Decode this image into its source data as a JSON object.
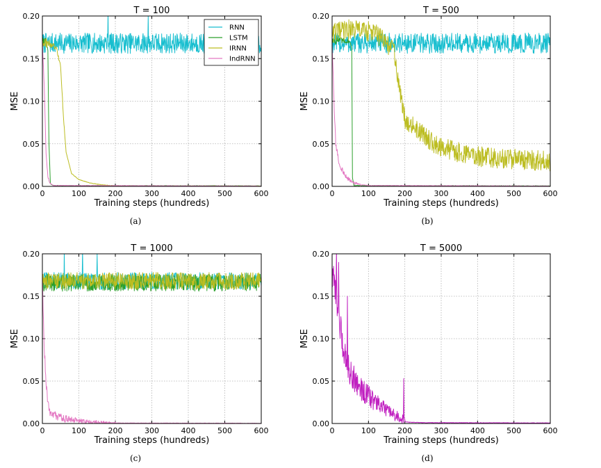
{
  "chart_data": [
    {
      "type": "line",
      "title": "T = 100",
      "caption": "(a)",
      "xlabel": "Training steps (hundreds)",
      "ylabel": "MSE",
      "xlim": [
        0,
        600
      ],
      "ylim": [
        0,
        0.2
      ],
      "xticks": [
        "0",
        "100",
        "200",
        "300",
        "400",
        "500",
        "600"
      ],
      "yticks": [
        "0.00",
        "0.05",
        "0.10",
        "0.15",
        "0.20"
      ],
      "grid": true,
      "legend": {
        "position": "top-right",
        "entries": [
          "RNN",
          "LSTM",
          "IRNN",
          "IndRNN"
        ]
      },
      "series": [
        {
          "name": "RNN",
          "color": "#17becf",
          "x": [
            0,
            600
          ],
          "level": [
            0.168,
            0.168
          ],
          "noise": 0.012,
          "spikes": [
            [
              180,
              0.205
            ],
            [
              290,
              0.2
            ]
          ]
        },
        {
          "name": "LSTM",
          "color": "#2ca02c",
          "x": [
            0,
            10,
            15,
            18,
            22,
            30,
            600
          ],
          "level": [
            0.17,
            0.172,
            0.16,
            0.05,
            0.003,
            0.001,
            0.0005
          ],
          "noise": 0.006,
          "noise_until": 15
        },
        {
          "name": "IRNN",
          "color": "#bcbd22",
          "x": [
            0,
            30,
            40,
            50,
            58,
            65,
            80,
            100,
            130,
            160,
            200,
            600
          ],
          "level": [
            0.17,
            0.165,
            0.16,
            0.14,
            0.08,
            0.04,
            0.015,
            0.008,
            0.004,
            0.002,
            0.0005,
            0.0003
          ],
          "noise": 0.006,
          "noise_until": 60
        },
        {
          "name": "IndRNN",
          "color": "#e377c2",
          "x": [
            0,
            5,
            10,
            15,
            20,
            30,
            600
          ],
          "level": [
            0.17,
            0.12,
            0.04,
            0.012,
            0.004,
            0.001,
            0.0003
          ],
          "noise": 0.003,
          "noise_until": 20
        }
      ]
    },
    {
      "type": "line",
      "title": "T = 500",
      "caption": "(b)",
      "xlabel": "Training steps (hundreds)",
      "ylabel": "MSE",
      "xlim": [
        0,
        600
      ],
      "ylim": [
        0,
        0.2
      ],
      "xticks": [
        "0",
        "100",
        "200",
        "300",
        "400",
        "500",
        "600"
      ],
      "yticks": [
        "0.00",
        "0.05",
        "0.10",
        "0.15",
        "0.20"
      ],
      "grid": true,
      "series": [
        {
          "name": "RNN",
          "color": "#17becf",
          "x": [
            0,
            600
          ],
          "level": [
            0.168,
            0.168
          ],
          "noise": 0.012
        },
        {
          "name": "LSTM",
          "color": "#2ca02c",
          "x": [
            0,
            50,
            54,
            56,
            60,
            600
          ],
          "level": [
            0.172,
            0.17,
            0.16,
            0.01,
            0.001,
            0.0005
          ],
          "noise": 0.006,
          "noise_until": 54
        },
        {
          "name": "IRNN",
          "color": "#bcbd22",
          "x": [
            0,
            60,
            120,
            170,
            180,
            190,
            200,
            250,
            300,
            400,
            500,
            600
          ],
          "level": [
            0.18,
            0.185,
            0.18,
            0.16,
            0.13,
            0.1,
            0.08,
            0.06,
            0.045,
            0.035,
            0.032,
            0.03
          ],
          "noise": 0.012
        },
        {
          "name": "IndRNN",
          "color": "#e377c2",
          "x": [
            0,
            5,
            10,
            20,
            40,
            60,
            80,
            100,
            600
          ],
          "level": [
            0.17,
            0.1,
            0.05,
            0.025,
            0.01,
            0.004,
            0.002,
            0.001,
            0.0003
          ],
          "noise": 0.004,
          "noise_until": 80
        }
      ]
    },
    {
      "type": "line",
      "title": "T = 1000",
      "caption": "(c)",
      "xlabel": "Training steps (hundreds)",
      "ylabel": "MSE",
      "xlim": [
        0,
        600
      ],
      "ylim": [
        0,
        0.2
      ],
      "xticks": [
        "0",
        "100",
        "200",
        "300",
        "400",
        "500",
        "600"
      ],
      "yticks": [
        "0.00",
        "0.05",
        "0.10",
        "0.15",
        "0.20"
      ],
      "grid": true,
      "series": [
        {
          "name": "RNN",
          "color": "#17becf",
          "x": [
            0,
            600
          ],
          "level": [
            0.168,
            0.168
          ],
          "noise": 0.01,
          "spikes": [
            [
              60,
              0.205
            ],
            [
              110,
              0.205
            ],
            [
              150,
              0.2
            ]
          ]
        },
        {
          "name": "LSTM",
          "color": "#2ca02c",
          "x": [
            0,
            600
          ],
          "level": [
            0.166,
            0.166
          ],
          "noise": 0.01
        },
        {
          "name": "IRNN",
          "color": "#bcbd22",
          "x": [
            0,
            600
          ],
          "level": [
            0.168,
            0.168
          ],
          "noise": 0.01
        },
        {
          "name": "IndRNN",
          "color": "#e377c2",
          "x": [
            0,
            5,
            10,
            15,
            20,
            40,
            80,
            120,
            160,
            200,
            600
          ],
          "level": [
            0.17,
            0.09,
            0.05,
            0.025,
            0.015,
            0.008,
            0.004,
            0.002,
            0.001,
            0.0005,
            0.0002
          ],
          "noise": 0.006,
          "noise_until": 200
        }
      ]
    },
    {
      "type": "line",
      "title": "T = 5000",
      "caption": "(d)",
      "xlabel": "Training steps (hundreds)",
      "ylabel": "MSE",
      "xlim": [
        0,
        600
      ],
      "ylim": [
        0,
        0.2
      ],
      "xticks": [
        "0",
        "100",
        "200",
        "300",
        "400",
        "500",
        "600"
      ],
      "yticks": [
        "0.00",
        "0.05",
        "0.10",
        "0.15",
        "0.20"
      ],
      "grid": true,
      "series": [
        {
          "name": "IndRNN",
          "color": "#c020c0",
          "x": [
            0,
            10,
            20,
            30,
            50,
            80,
            120,
            160,
            195,
            200,
            210,
            250,
            600
          ],
          "level": [
            0.17,
            0.16,
            0.12,
            0.09,
            0.06,
            0.04,
            0.025,
            0.012,
            0.005,
            0.002,
            0.0015,
            0.001,
            0.0006
          ],
          "noise": 0.02,
          "noise_until": 200,
          "spikes": [
            [
              12,
              0.205
            ],
            [
              18,
              0.19
            ],
            [
              42,
              0.15
            ],
            [
              197,
              0.053
            ]
          ]
        }
      ]
    }
  ]
}
